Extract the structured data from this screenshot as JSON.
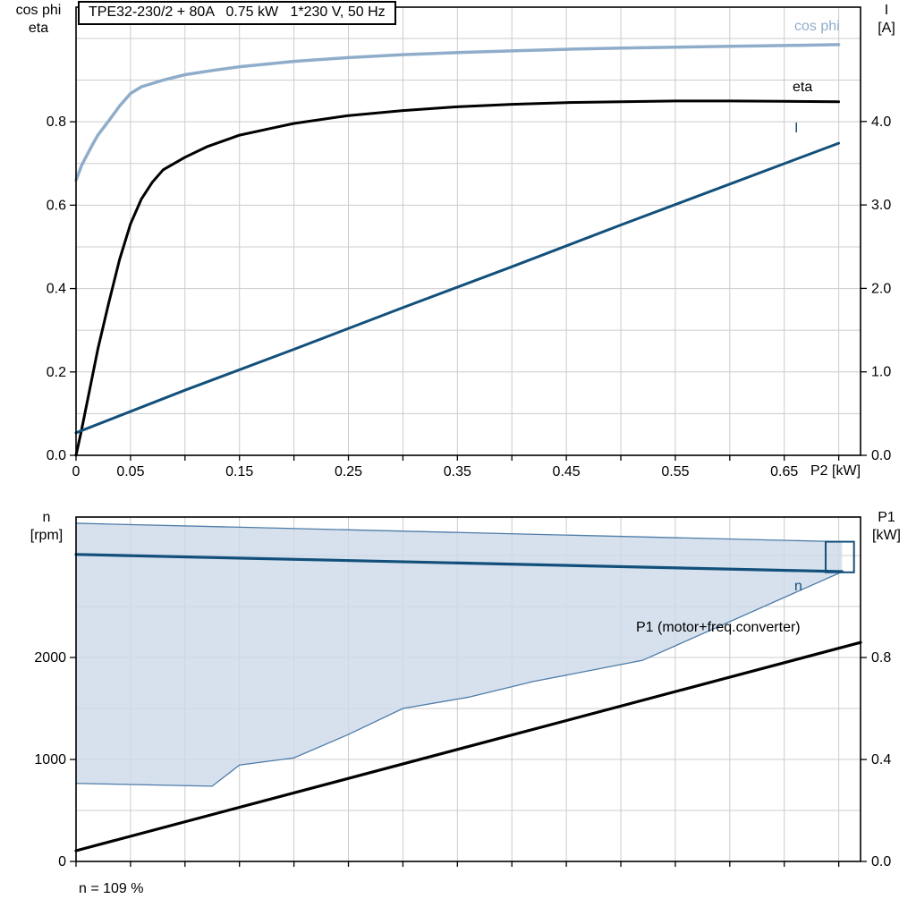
{
  "title": "TPE32-230/2 + 80A   0.75 kW   1*230 V, 50 Hz",
  "labels": {
    "top_left_1": "cos phi",
    "top_left_2": "eta",
    "top_right_1": "I",
    "top_right_2": "[A]",
    "x_axis": "P2 [kW]",
    "curve_cos_phi": "cos phi",
    "curve_eta": "eta",
    "curve_I": "I",
    "bottom_left_1": "n",
    "bottom_left_2": "[rpm]",
    "bottom_right_1": "P1",
    "bottom_right_2": "[kW]",
    "curve_n": "n",
    "curve_p1": "P1 (motor+freq.converter)",
    "footnote": "n = 109 %"
  },
  "colors": {
    "cos_phi": "#8fadca",
    "dark_blue": "#12507b",
    "black": "#000000",
    "grid": "#cccccc",
    "region_fill": "#ccdae8",
    "region_edge": "#4e7ca8",
    "frame": "#000000"
  },
  "chart_data": [
    {
      "name": "performance-curves",
      "type": "line",
      "title": "TPE32-230/2 + 80A   0.75 kW   1*230 V, 50 Hz",
      "xlabel": "P2 [kW]",
      "x_range": [
        0,
        0.72
      ],
      "x_grid_step": 0.05,
      "x_ticks": [
        {
          "v": 0,
          "t": "0"
        },
        {
          "v": 0.05,
          "t": "0.05"
        },
        {
          "v": 0.15,
          "t": "0.15"
        },
        {
          "v": 0.25,
          "t": "0.25"
        },
        {
          "v": 0.35,
          "t": "0.35"
        },
        {
          "v": 0.45,
          "t": "0.45"
        },
        {
          "v": 0.55,
          "t": "0.55"
        },
        {
          "v": 0.65,
          "t": "0.65"
        }
      ],
      "left_axis": {
        "label": "cos phi / eta",
        "range": [
          0,
          1.075
        ],
        "grid_step": 0.1,
        "ticks": [
          {
            "v": 0.0,
            "t": "0.0"
          },
          {
            "v": 0.2,
            "t": "0.2"
          },
          {
            "v": 0.4,
            "t": "0.4"
          },
          {
            "v": 0.6,
            "t": "0.6"
          },
          {
            "v": 0.8,
            "t": "0.8"
          }
        ]
      },
      "right_axis": {
        "label": "I [A]",
        "range": [
          0,
          5.37
        ],
        "ticks": [
          {
            "v": 0,
            "t": "0.0"
          },
          {
            "v": 1,
            "t": "1.0"
          },
          {
            "v": 2,
            "t": "2.0"
          },
          {
            "v": 3,
            "t": "3.0"
          },
          {
            "v": 4,
            "t": "4.0"
          }
        ]
      },
      "series": [
        {
          "name": "cos phi",
          "axis": "left",
          "color_key": "cos_phi",
          "width": 3.5,
          "points": [
            [
              0,
              0.66
            ],
            [
              0.005,
              0.695
            ],
            [
              0.01,
              0.72
            ],
            [
              0.015,
              0.745
            ],
            [
              0.02,
              0.768
            ],
            [
              0.03,
              0.802
            ],
            [
              0.04,
              0.838
            ],
            [
              0.05,
              0.868
            ],
            [
              0.06,
              0.884
            ],
            [
              0.08,
              0.9
            ],
            [
              0.1,
              0.913
            ],
            [
              0.125,
              0.923
            ],
            [
              0.15,
              0.932
            ],
            [
              0.2,
              0.945
            ],
            [
              0.25,
              0.954
            ],
            [
              0.3,
              0.961
            ],
            [
              0.35,
              0.966
            ],
            [
              0.4,
              0.97
            ],
            [
              0.45,
              0.974
            ],
            [
              0.5,
              0.977
            ],
            [
              0.55,
              0.979
            ],
            [
              0.6,
              0.981
            ],
            [
              0.65,
              0.983
            ],
            [
              0.7,
              0.985
            ]
          ]
        },
        {
          "name": "eta",
          "axis": "left",
          "color_key": "black",
          "width": 3,
          "points": [
            [
              0,
              0
            ],
            [
              0.005,
              0.06
            ],
            [
              0.01,
              0.125
            ],
            [
              0.015,
              0.19
            ],
            [
              0.02,
              0.255
            ],
            [
              0.03,
              0.365
            ],
            [
              0.04,
              0.47
            ],
            [
              0.05,
              0.555
            ],
            [
              0.06,
              0.615
            ],
            [
              0.07,
              0.655
            ],
            [
              0.08,
              0.685
            ],
            [
              0.1,
              0.715
            ],
            [
              0.12,
              0.74
            ],
            [
              0.15,
              0.768
            ],
            [
              0.18,
              0.785
            ],
            [
              0.2,
              0.796
            ],
            [
              0.25,
              0.815
            ],
            [
              0.3,
              0.827
            ],
            [
              0.35,
              0.836
            ],
            [
              0.4,
              0.842
            ],
            [
              0.45,
              0.846
            ],
            [
              0.5,
              0.848
            ],
            [
              0.55,
              0.85
            ],
            [
              0.6,
              0.85
            ],
            [
              0.65,
              0.849
            ],
            [
              0.7,
              0.848
            ]
          ]
        },
        {
          "name": "I",
          "axis": "right",
          "color_key": "dark_blue",
          "width": 3,
          "points": [
            [
              0,
              0.27
            ],
            [
              0.1,
              0.78
            ],
            [
              0.2,
              1.27
            ],
            [
              0.3,
              1.77
            ],
            [
              0.4,
              2.26
            ],
            [
              0.5,
              2.76
            ],
            [
              0.6,
              3.25
            ],
            [
              0.7,
              3.74
            ]
          ]
        }
      ]
    },
    {
      "name": "speed-and-p1",
      "type": "line",
      "x_range": [
        0,
        0.72
      ],
      "x_grid_step": 0.05,
      "left_axis": {
        "label": "n [rpm]",
        "range": [
          0,
          3377
        ],
        "grid_step": 500,
        "ticks": [
          {
            "v": 0,
            "t": "0"
          },
          {
            "v": 1000,
            "t": "1000"
          },
          {
            "v": 2000,
            "t": "2000"
          }
        ]
      },
      "right_axis": {
        "label": "P1 [kW]",
        "range": [
          0,
          1.351
        ],
        "ticks": [
          {
            "v": 0,
            "t": "0.0"
          },
          {
            "v": 0.4,
            "t": "0.4"
          },
          {
            "v": 0.8,
            "t": "0.8"
          }
        ]
      },
      "region": {
        "name": "speed control range",
        "upper": [
          [
            0,
            3316
          ],
          [
            0.703,
            3135
          ]
        ],
        "lower": [
          [
            0,
            765
          ],
          [
            0.06,
            752
          ],
          [
            0.125,
            738
          ],
          [
            0.15,
            945
          ],
          [
            0.2,
            1015
          ],
          [
            0.25,
            1245
          ],
          [
            0.3,
            1500
          ],
          [
            0.36,
            1610
          ],
          [
            0.42,
            1765
          ],
          [
            0.47,
            1868
          ],
          [
            0.52,
            1972
          ],
          [
            0.703,
            2840
          ]
        ]
      },
      "end_box": {
        "x": [
          0.688,
          0.714
        ],
        "y": [
          2835,
          3135
        ]
      },
      "series": [
        {
          "name": "n",
          "axis": "left",
          "color_key": "dark_blue",
          "width": 3.2,
          "points": [
            [
              0,
              3010
            ],
            [
              0.703,
              2842
            ]
          ]
        },
        {
          "name": "P1 (motor+freq.converter)",
          "axis": "right",
          "color_key": "black",
          "width": 3.2,
          "points": [
            [
              0,
              0.042
            ],
            [
              0.72,
              0.859
            ]
          ]
        }
      ],
      "footnote": "n = 109 %"
    }
  ]
}
